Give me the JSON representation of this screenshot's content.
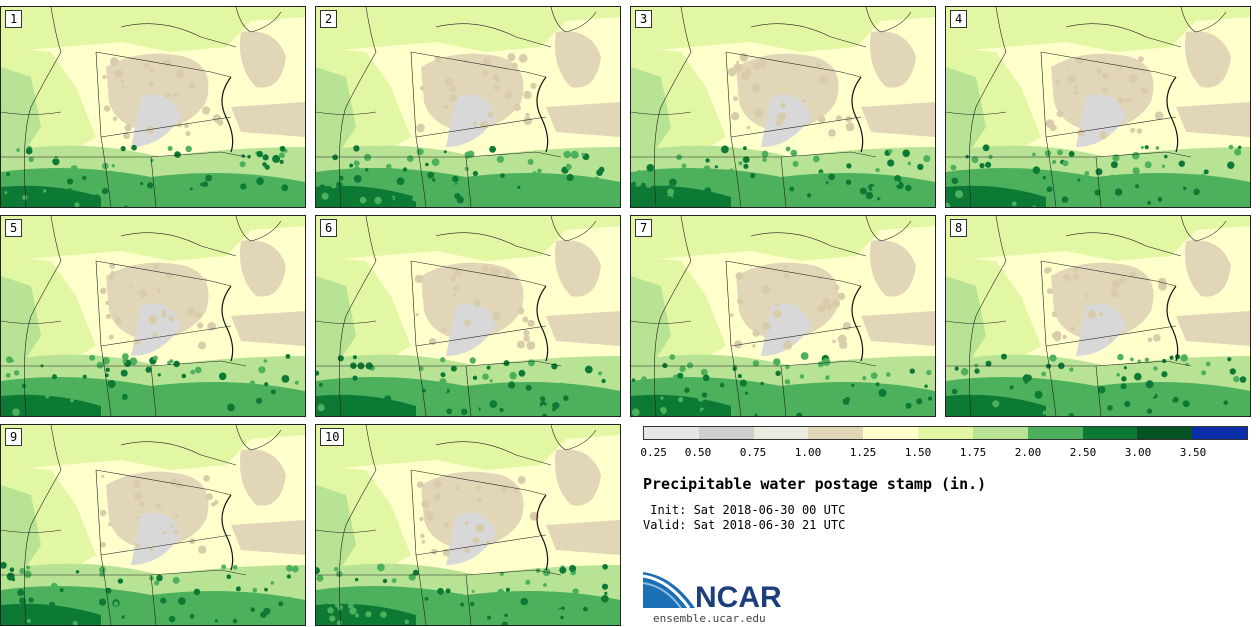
{
  "panels": [
    {
      "label": "1"
    },
    {
      "label": "2"
    },
    {
      "label": "3"
    },
    {
      "label": "4"
    },
    {
      "label": "5"
    },
    {
      "label": "6"
    },
    {
      "label": "7"
    },
    {
      "label": "8"
    },
    {
      "label": "9"
    },
    {
      "label": "10"
    }
  ],
  "colorbar": {
    "colors": [
      "#e6e6e6",
      "#cfcfcf",
      "#ebebdf",
      "#e2d6b8",
      "#ffffcc",
      "#e2f7a4",
      "#b8e394",
      "#4cb05c",
      "#0c7a34",
      "#045224",
      "#0a2ea8"
    ],
    "ticks": [
      "0.25",
      "0.50",
      "0.75",
      "1.00",
      "1.25",
      "1.50",
      "1.75",
      "2.00",
      "2.50",
      "3.00",
      "3.50"
    ]
  },
  "title": "Precipitable water postage stamp (in.)",
  "init_label": " Init: Sat 2018-06-30 00 UTC",
  "valid_label": "Valid: Sat 2018-06-30 21 UTC",
  "logo": {
    "text": "NCAR",
    "url": "ensemble.ucar.edu"
  }
}
